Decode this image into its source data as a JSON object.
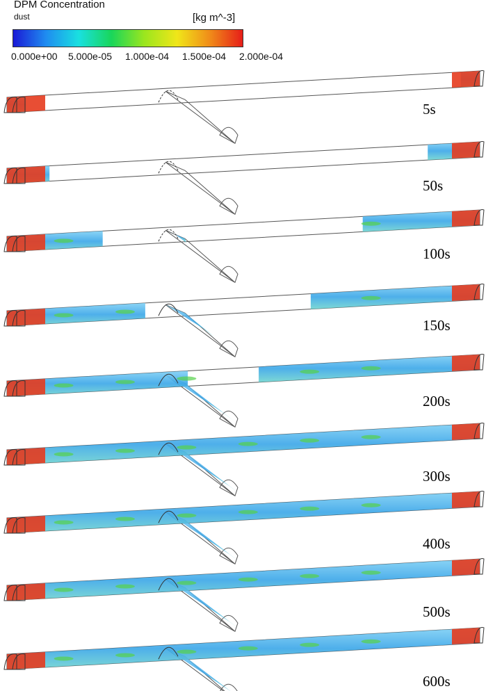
{
  "legend": {
    "title": "DPM Concentration",
    "subtitle": "dust",
    "unit": "[kg m^-3]",
    "ticks": [
      "0.000e+00",
      "5.000e-05",
      "1.000e-04",
      "1.500e-04",
      "2.000e-04"
    ],
    "colors": [
      "#1a1ad6",
      "#1f8cf0",
      "#19e0e0",
      "#19d65a",
      "#9be61e",
      "#f0e619",
      "#f08c19",
      "#e61e19"
    ]
  },
  "frames": [
    {
      "time": "5s",
      "fill": 0.0,
      "branch": 0.0
    },
    {
      "time": "50s",
      "fill": 0.2,
      "branch": 0.0
    },
    {
      "time": "100s",
      "fill": 0.45,
      "branch": 0.15
    },
    {
      "time": "150s",
      "fill": 0.65,
      "branch": 0.6
    },
    {
      "time": "200s",
      "fill": 0.85,
      "branch": 0.9
    },
    {
      "time": "300s",
      "fill": 1.0,
      "branch": 1.0
    },
    {
      "time": "400s",
      "fill": 1.0,
      "branch": 1.0
    },
    {
      "time": "500s",
      "fill": 1.0,
      "branch": 1.0
    },
    {
      "time": "600s",
      "fill": 1.0,
      "branch": 1.0
    }
  ]
}
